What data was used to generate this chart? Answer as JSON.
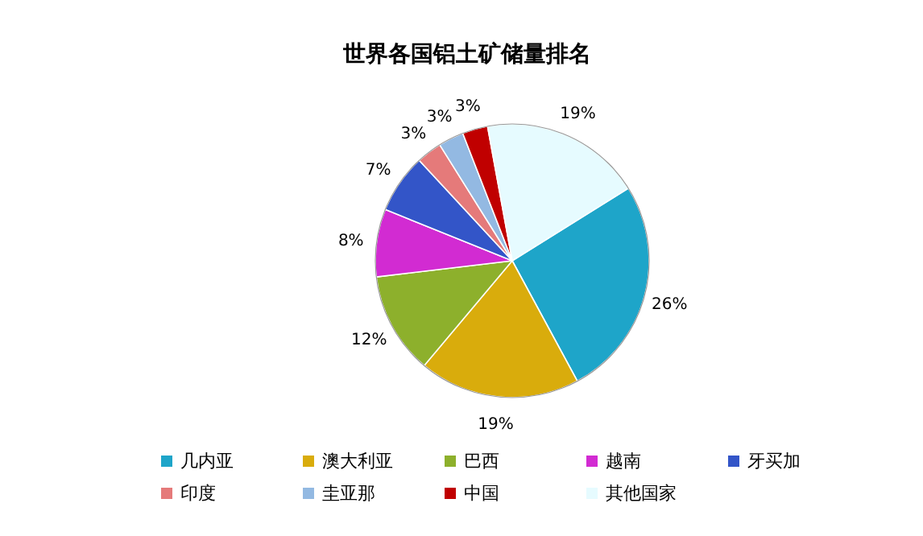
{
  "chart_data": {
    "type": "pie",
    "title": "世界各国铝土矿储量排名",
    "categories": [
      "几内亚",
      "澳大利亚",
      "巴西",
      "越南",
      "牙买加",
      "印度",
      "圭亚那",
      "中国",
      "其他国家"
    ],
    "values": [
      26,
      19,
      12,
      8,
      7,
      3,
      3,
      3,
      19
    ],
    "colors": [
      "#1ea5c9",
      "#d9ac0c",
      "#8db02c",
      "#d22bd2",
      "#3355c8",
      "#e57a7a",
      "#93b9e2",
      "#c00000",
      "#e6fbff"
    ],
    "value_labels": [
      "26%",
      "19%",
      "12%",
      "8%",
      "7%",
      "3%",
      "3%",
      "3%",
      "19%"
    ],
    "legend": "bottom"
  }
}
